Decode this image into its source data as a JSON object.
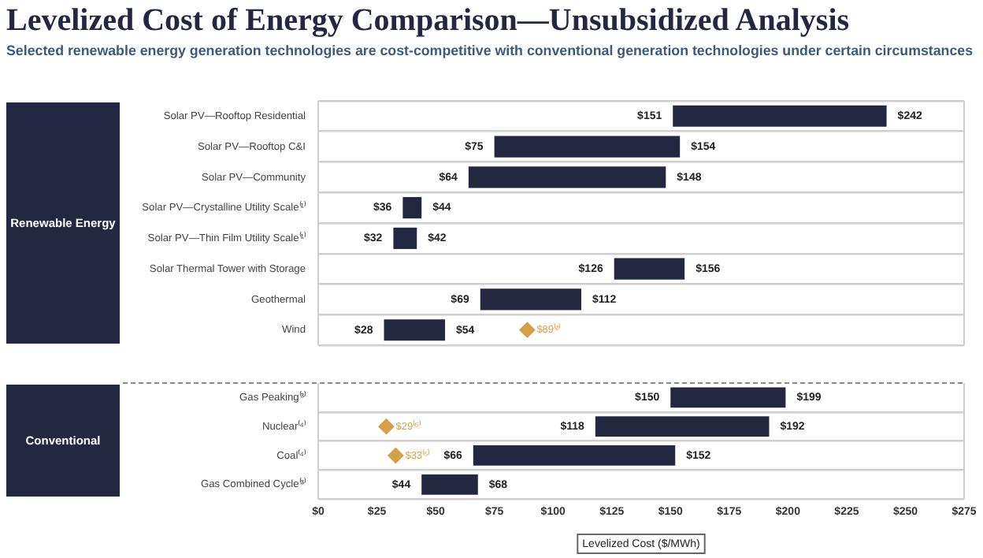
{
  "chart_data": [
    {
      "type": "bar",
      "orientation": "horizontal",
      "title": "Levelized Cost of Energy Comparison—Unsubsidized Analysis",
      "subtitle": "Selected renewable energy generation technologies are cost-competitive with conventional generation technologies under certain circumstances",
      "ylabel": "Renewable Energy",
      "categories": [
        "Solar PV—Rooftop Residential",
        "Solar PV—Rooftop C&I",
        "Solar PV—Community",
        "Solar PV—Crystalline Utility Scale⁽¹⁾",
        "Solar PV—Thin Film Utility Scale⁽¹⁾",
        "Solar Thermal Tower with Storage",
        "Geothermal",
        "Wind"
      ],
      "series": [
        {
          "color": "#232840",
          "base": [
            151,
            75,
            64,
            36,
            32,
            126,
            69,
            28
          ],
          "values": [
            91,
            79,
            84,
            8,
            10,
            30,
            43,
            26
          ],
          "value_labels": [
            "$242",
            "$154",
            "$148",
            "$44",
            "$42",
            "$156",
            "$112",
            "$54"
          ]
        },
        {
          "type": "scatter",
          "color": "#d4a04a",
          "marker": "diamond",
          "x": [
            "Wind"
          ],
          "values": [
            89
          ],
          "value_labels": [
            "$89⁽²⁾"
          ]
        }
      ],
      "annotations": [
        "$151",
        "$75",
        "$64",
        "$36",
        "$32",
        "$126",
        "$69",
        "$28"
      ],
      "xlim": [
        0,
        275
      ],
      "tick_labels": "y",
      "grid": "y",
      "legend": false
    },
    {
      "type": "bar",
      "orientation": "horizontal",
      "ylabel": "Conventional",
      "xlabel": "Levelized Cost ($/MWh)",
      "categories": [
        "Gas Peaking⁽³⁾",
        "Nuclear⁽⁴⁾",
        "Coal⁽⁴⁾",
        "Gas Combined Cycle⁽³⁾"
      ],
      "series": [
        {
          "color": "#232840",
          "base": [
            150,
            118,
            66,
            44
          ],
          "values": [
            49,
            74,
            86,
            24
          ],
          "value_labels": [
            "$199",
            "$192",
            "$152",
            "$68"
          ]
        },
        {
          "type": "scatter",
          "color": "#d4a04a",
          "marker": "diamond",
          "x": [
            "Nuclear⁽⁴⁾",
            "Coal⁽⁴⁾"
          ],
          "values": [
            29,
            33
          ],
          "value_labels": [
            "$29⁽⁵⁾",
            "$33⁽⁵⁾"
          ]
        }
      ],
      "annotations": [
        "$150",
        "$118",
        "$66",
        "$44"
      ],
      "xlim": [
        0,
        275
      ],
      "xticks": [
        {
          "value": 0,
          "label": "$0"
        },
        {
          "value": 25,
          "label": "$25"
        },
        {
          "value": 50,
          "label": "$50"
        },
        {
          "value": 75,
          "label": "$75"
        },
        {
          "value": 100,
          "label": "$100"
        },
        {
          "value": 125,
          "label": "$125"
        },
        {
          "value": 150,
          "label": "$150"
        },
        {
          "value": 175,
          "label": "$175"
        },
        {
          "value": 200,
          "label": "$200"
        },
        {
          "value": 225,
          "label": "$225"
        },
        {
          "value": 250,
          "label": "$250"
        },
        {
          "value": 275,
          "label": "$275"
        }
      ],
      "grid": "y",
      "legend": false
    }
  ]
}
